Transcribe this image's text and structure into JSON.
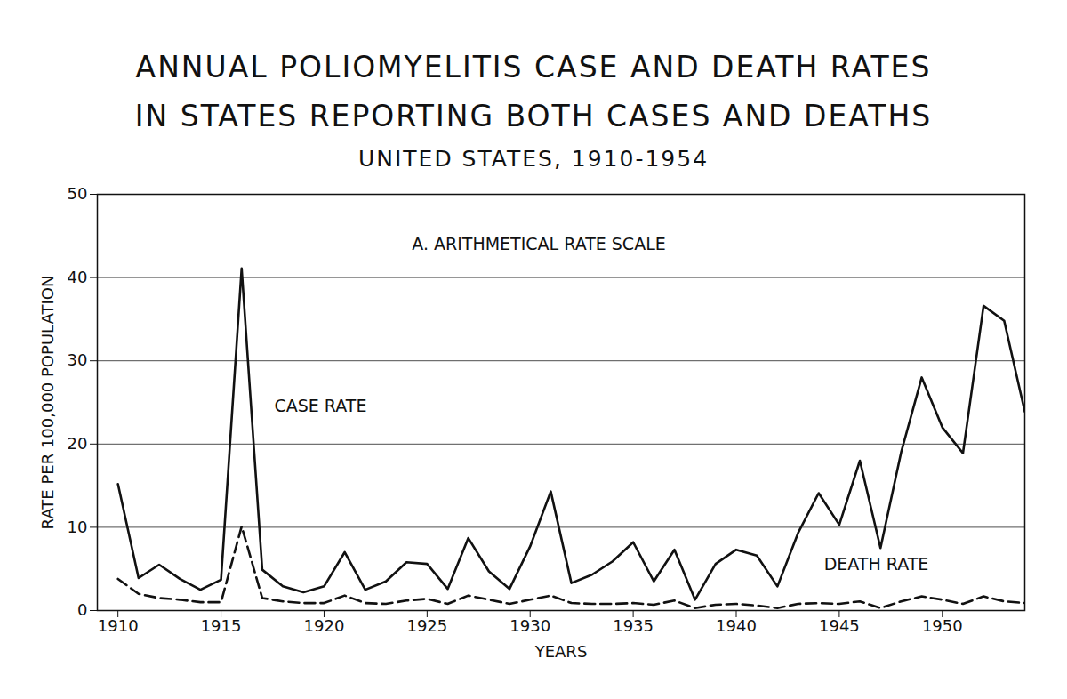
{
  "chart_data": {
    "type": "line",
    "title": "ANNUAL POLIOMYELITIS CASE AND DEATH RATES\nIN STATES REPORTING BOTH CASES AND DEATHS",
    "subtitle": "UNITED STATES, 1910-1954",
    "annotation": "A. ARITHMETICAL RATE SCALE",
    "x_label": "YEARS",
    "y_label": "RATE PER 100,000 POPULATION",
    "x": [
      1910,
      1911,
      1912,
      1913,
      1914,
      1915,
      1916,
      1917,
      1918,
      1919,
      1920,
      1921,
      1922,
      1923,
      1924,
      1925,
      1926,
      1927,
      1928,
      1929,
      1930,
      1931,
      1932,
      1933,
      1934,
      1935,
      1936,
      1937,
      1938,
      1939,
      1940,
      1941,
      1942,
      1943,
      1944,
      1945,
      1946,
      1947,
      1948,
      1949,
      1950,
      1951,
      1952,
      1953,
      1954
    ],
    "series": [
      {
        "name": "CASE RATE",
        "color": "#111111",
        "line_style": "solid",
        "values": [
          15.2,
          3.9,
          5.5,
          3.8,
          2.5,
          3.7,
          41.1,
          4.9,
          2.9,
          2.2,
          2.9,
          7.0,
          2.5,
          3.5,
          5.8,
          5.6,
          2.6,
          8.7,
          4.7,
          2.6,
          7.7,
          14.3,
          3.3,
          4.3,
          5.9,
          8.2,
          3.5,
          7.3,
          1.3,
          5.6,
          7.3,
          6.6,
          2.9,
          9.3,
          14.1,
          10.3,
          18.0,
          7.5,
          19.0,
          28.0,
          22.0,
          18.9,
          36.6,
          34.8,
          23.9
        ]
      },
      {
        "name": "DEATH RATE",
        "color": "#111111",
        "line_style": "dashed",
        "values": [
          3.8,
          2.0,
          1.5,
          1.3,
          1.0,
          1.0,
          10.1,
          1.5,
          1.1,
          0.9,
          0.9,
          1.8,
          0.9,
          0.8,
          1.2,
          1.4,
          0.8,
          1.8,
          1.3,
          0.8,
          1.3,
          1.8,
          0.9,
          0.8,
          0.8,
          0.9,
          0.7,
          1.2,
          0.3,
          0.7,
          0.8,
          0.6,
          0.3,
          0.8,
          0.9,
          0.8,
          1.1,
          0.3,
          1.1,
          1.7,
          1.3,
          0.8,
          1.7,
          1.1,
          0.9
        ]
      }
    ],
    "xlim": [
      1909,
      1954
    ],
    "xticks": [
      1910,
      1915,
      1920,
      1925,
      1930,
      1935,
      1940,
      1945,
      1950
    ],
    "ylim": [
      0,
      50
    ],
    "yticks": [
      0,
      10,
      20,
      30,
      40,
      50
    ],
    "grid": true
  }
}
